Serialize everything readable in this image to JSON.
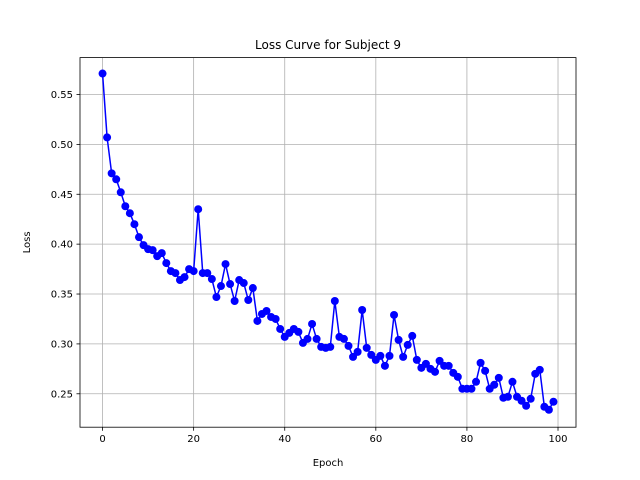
{
  "chart_data": {
    "type": "line",
    "title": "Loss Curve for Subject 9",
    "xlabel": "Epoch",
    "ylabel": "Loss",
    "xlim": [
      -4.95,
      103.95
    ],
    "ylim": [
      0.2165,
      0.587
    ],
    "xticks": [
      0,
      20,
      40,
      60,
      80,
      100
    ],
    "xtick_labels": [
      "0",
      "20",
      "40",
      "60",
      "80",
      "100"
    ],
    "yticks": [
      0.25,
      0.3,
      0.35,
      0.4,
      0.45,
      0.5,
      0.55
    ],
    "ytick_labels": [
      "0.25",
      "0.30",
      "0.35",
      "0.40",
      "0.45",
      "0.50",
      "0.55"
    ],
    "grid": true,
    "legend": false,
    "series": [
      {
        "color": "#0000ff",
        "marker": "circle",
        "x": [
          0,
          1,
          2,
          3,
          4,
          5,
          6,
          7,
          8,
          9,
          10,
          11,
          12,
          13,
          14,
          15,
          16,
          17,
          18,
          19,
          20,
          21,
          22,
          23,
          24,
          25,
          26,
          27,
          28,
          29,
          30,
          31,
          32,
          33,
          34,
          35,
          36,
          37,
          38,
          39,
          40,
          41,
          42,
          43,
          44,
          45,
          46,
          47,
          48,
          49,
          50,
          51,
          52,
          53,
          54,
          55,
          56,
          57,
          58,
          59,
          60,
          61,
          62,
          63,
          64,
          65,
          66,
          67,
          68,
          69,
          70,
          71,
          72,
          73,
          74,
          75,
          76,
          77,
          78,
          79,
          80,
          81,
          82,
          83,
          84,
          85,
          86,
          87,
          88,
          89,
          90,
          91,
          92,
          93,
          94,
          95,
          96,
          97,
          98,
          99
        ],
        "values": [
          0.571,
          0.507,
          0.471,
          0.465,
          0.452,
          0.438,
          0.431,
          0.42,
          0.407,
          0.399,
          0.395,
          0.394,
          0.388,
          0.391,
          0.381,
          0.373,
          0.371,
          0.364,
          0.367,
          0.375,
          0.373,
          0.435,
          0.371,
          0.371,
          0.365,
          0.347,
          0.358,
          0.38,
          0.36,
          0.343,
          0.364,
          0.361,
          0.344,
          0.356,
          0.323,
          0.33,
          0.333,
          0.327,
          0.325,
          0.315,
          0.307,
          0.311,
          0.315,
          0.312,
          0.301,
          0.305,
          0.32,
          0.305,
          0.297,
          0.296,
          0.297,
          0.343,
          0.307,
          0.305,
          0.298,
          0.287,
          0.292,
          0.334,
          0.296,
          0.289,
          0.284,
          0.288,
          0.278,
          0.288,
          0.329,
          0.304,
          0.287,
          0.299,
          0.308,
          0.284,
          0.276,
          0.28,
          0.275,
          0.272,
          0.283,
          0.278,
          0.278,
          0.271,
          0.267,
          0.255,
          0.255,
          0.255,
          0.262,
          0.281,
          0.273,
          0.255,
          0.259,
          0.266,
          0.246,
          0.247,
          0.262,
          0.247,
          0.243,
          0.238,
          0.245,
          0.27,
          0.274,
          0.237,
          0.234,
          0.242
        ]
      }
    ]
  }
}
